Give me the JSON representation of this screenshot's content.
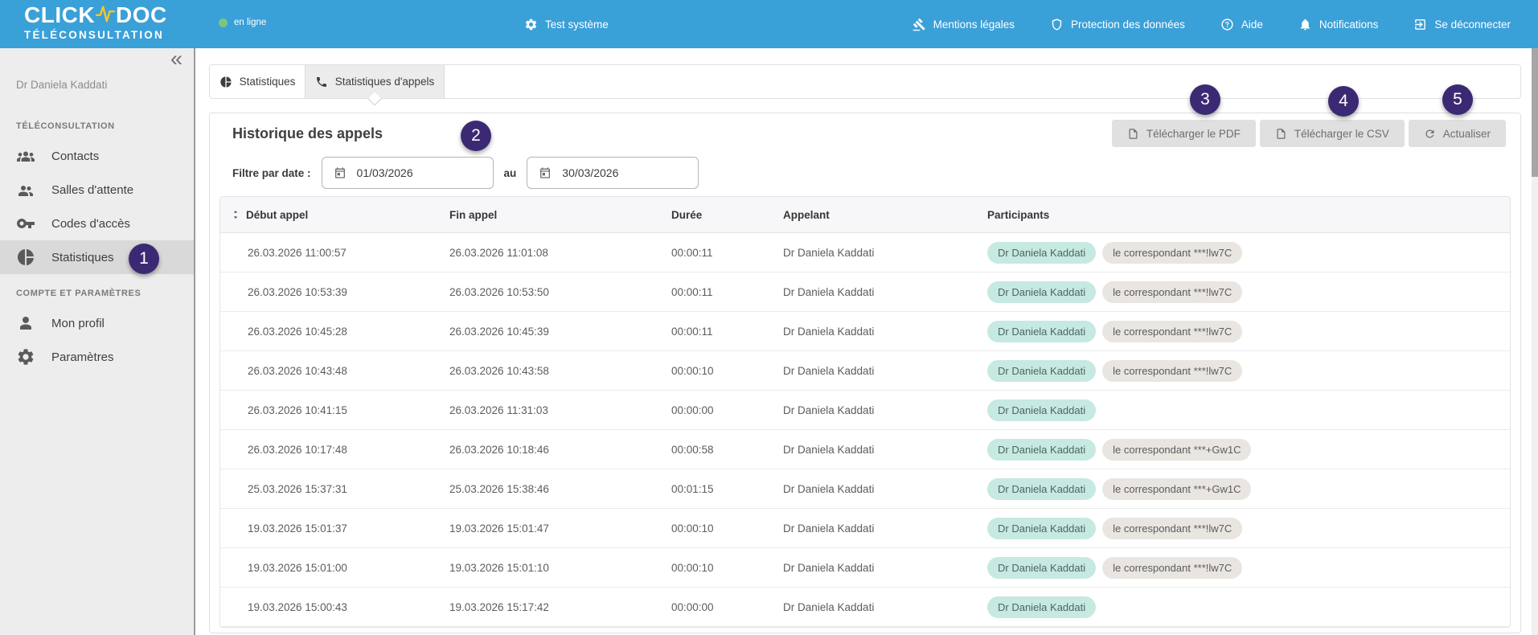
{
  "colors": {
    "header_blue": "#3aa0d8",
    "logo_accent_yellow": "#f9c623",
    "online_green": "#7bc67e",
    "annotation_purple": "#3b2a73",
    "chip_teal": "#c6e9e2",
    "chip_gray": "#e9e5e1",
    "active_tab_gray": "#ececec",
    "sidebar_gray": "#ededed"
  },
  "header": {
    "logo_line1_left": "CLICK",
    "logo_line1_right": "DOC",
    "logo_line2": "TÉLÉCONSULTATION",
    "online_status": "en ligne",
    "system_button": "Test système",
    "nav_items": [
      {
        "label": "Mentions légales",
        "icon": "gavel-icon"
      },
      {
        "label": "Protection des données",
        "icon": "shield-icon"
      },
      {
        "label": "Aide",
        "icon": "help-icon"
      },
      {
        "label": "Notifications",
        "icon": "bell-icon"
      },
      {
        "label": "Se déconnecter",
        "icon": "logout-icon"
      }
    ]
  },
  "sidebar": {
    "collapse_glyph": "«",
    "user_name": "Dr Daniela Kaddati",
    "section1_title": "TÉLÉCONSULTATION",
    "items1": [
      {
        "label": "Contacts",
        "icon": "contacts-icon",
        "active": false
      },
      {
        "label": "Salles d'attente",
        "icon": "waiting-room-icon",
        "active": false
      },
      {
        "label": "Codes d'accès",
        "icon": "key-icon",
        "active": false
      },
      {
        "label": "Statistiques",
        "icon": "pie-chart-icon",
        "active": true
      }
    ],
    "section2_title": "COMPTE ET PARAMÈTRES",
    "items2": [
      {
        "label": "Mon profil",
        "icon": "person-icon"
      },
      {
        "label": "Paramètres",
        "icon": "gear-icon"
      }
    ]
  },
  "tabs": {
    "tab1": "Statistiques",
    "tab2": "Statistiques d'appels",
    "active_tab": "Statistiques d'appels"
  },
  "main": {
    "title": "Historique des appels",
    "pdf_button": "Télécharger le PDF",
    "csv_button": "Télécharger le CSV",
    "refresh_button": "Actualiser",
    "filter_label": "Filtre par date :",
    "date_from": "01/03/2026",
    "date_separator": "au",
    "date_to": "30/03/2026"
  },
  "table": {
    "columns": [
      "Début appel",
      "Fin appel",
      "Durée",
      "Appelant",
      "Participants"
    ],
    "rows": [
      {
        "start": "26.03.2026 11:00:57",
        "end": "26.03.2026 11:01:08",
        "duration": "00:00:11",
        "caller": "Dr Daniela Kaddati",
        "participants": [
          "Dr Daniela Kaddati",
          "le correspondant ***!lw7C"
        ]
      },
      {
        "start": "26.03.2026 10:53:39",
        "end": "26.03.2026 10:53:50",
        "duration": "00:00:11",
        "caller": "Dr Daniela Kaddati",
        "participants": [
          "Dr Daniela Kaddati",
          "le correspondant ***!lw7C"
        ]
      },
      {
        "start": "26.03.2026 10:45:28",
        "end": "26.03.2026 10:45:39",
        "duration": "00:00:11",
        "caller": "Dr Daniela Kaddati",
        "participants": [
          "Dr Daniela Kaddati",
          "le correspondant ***!lw7C"
        ]
      },
      {
        "start": "26.03.2026 10:43:48",
        "end": "26.03.2026 10:43:58",
        "duration": "00:00:10",
        "caller": "Dr Daniela Kaddati",
        "participants": [
          "Dr Daniela Kaddati",
          "le correspondant ***!lw7C"
        ]
      },
      {
        "start": "26.03.2026 10:41:15",
        "end": "26.03.2026 11:31:03",
        "duration": "00:00:00",
        "caller": "Dr Daniela Kaddati",
        "participants": [
          "Dr Daniela Kaddati"
        ]
      },
      {
        "start": "26.03.2026 10:17:48",
        "end": "26.03.2026 10:18:46",
        "duration": "00:00:58",
        "caller": "Dr Daniela Kaddati",
        "participants": [
          "Dr Daniela Kaddati",
          "le correspondant ***+Gw1C"
        ]
      },
      {
        "start": "25.03.2026 15:37:31",
        "end": "25.03.2026 15:38:46",
        "duration": "00:01:15",
        "caller": "Dr Daniela Kaddati",
        "participants": [
          "Dr Daniela Kaddati",
          "le correspondant ***+Gw1C"
        ]
      },
      {
        "start": "19.03.2026 15:01:37",
        "end": "19.03.2026 15:01:47",
        "duration": "00:00:10",
        "caller": "Dr Daniela Kaddati",
        "participants": [
          "Dr Daniela Kaddati",
          "le correspondant ***!lw7C"
        ]
      },
      {
        "start": "19.03.2026 15:01:00",
        "end": "19.03.2026 15:01:10",
        "duration": "00:00:10",
        "caller": "Dr Daniela Kaddati",
        "participants": [
          "Dr Daniela Kaddati",
          "le correspondant ***!lw7C"
        ]
      },
      {
        "start": "19.03.2026 15:00:43",
        "end": "19.03.2026 15:17:42",
        "duration": "00:00:00",
        "caller": "Dr Daniela Kaddati",
        "participants": [
          "Dr Daniela Kaddati"
        ]
      }
    ]
  },
  "annotations": [
    "1",
    "2",
    "3",
    "4",
    "5"
  ]
}
